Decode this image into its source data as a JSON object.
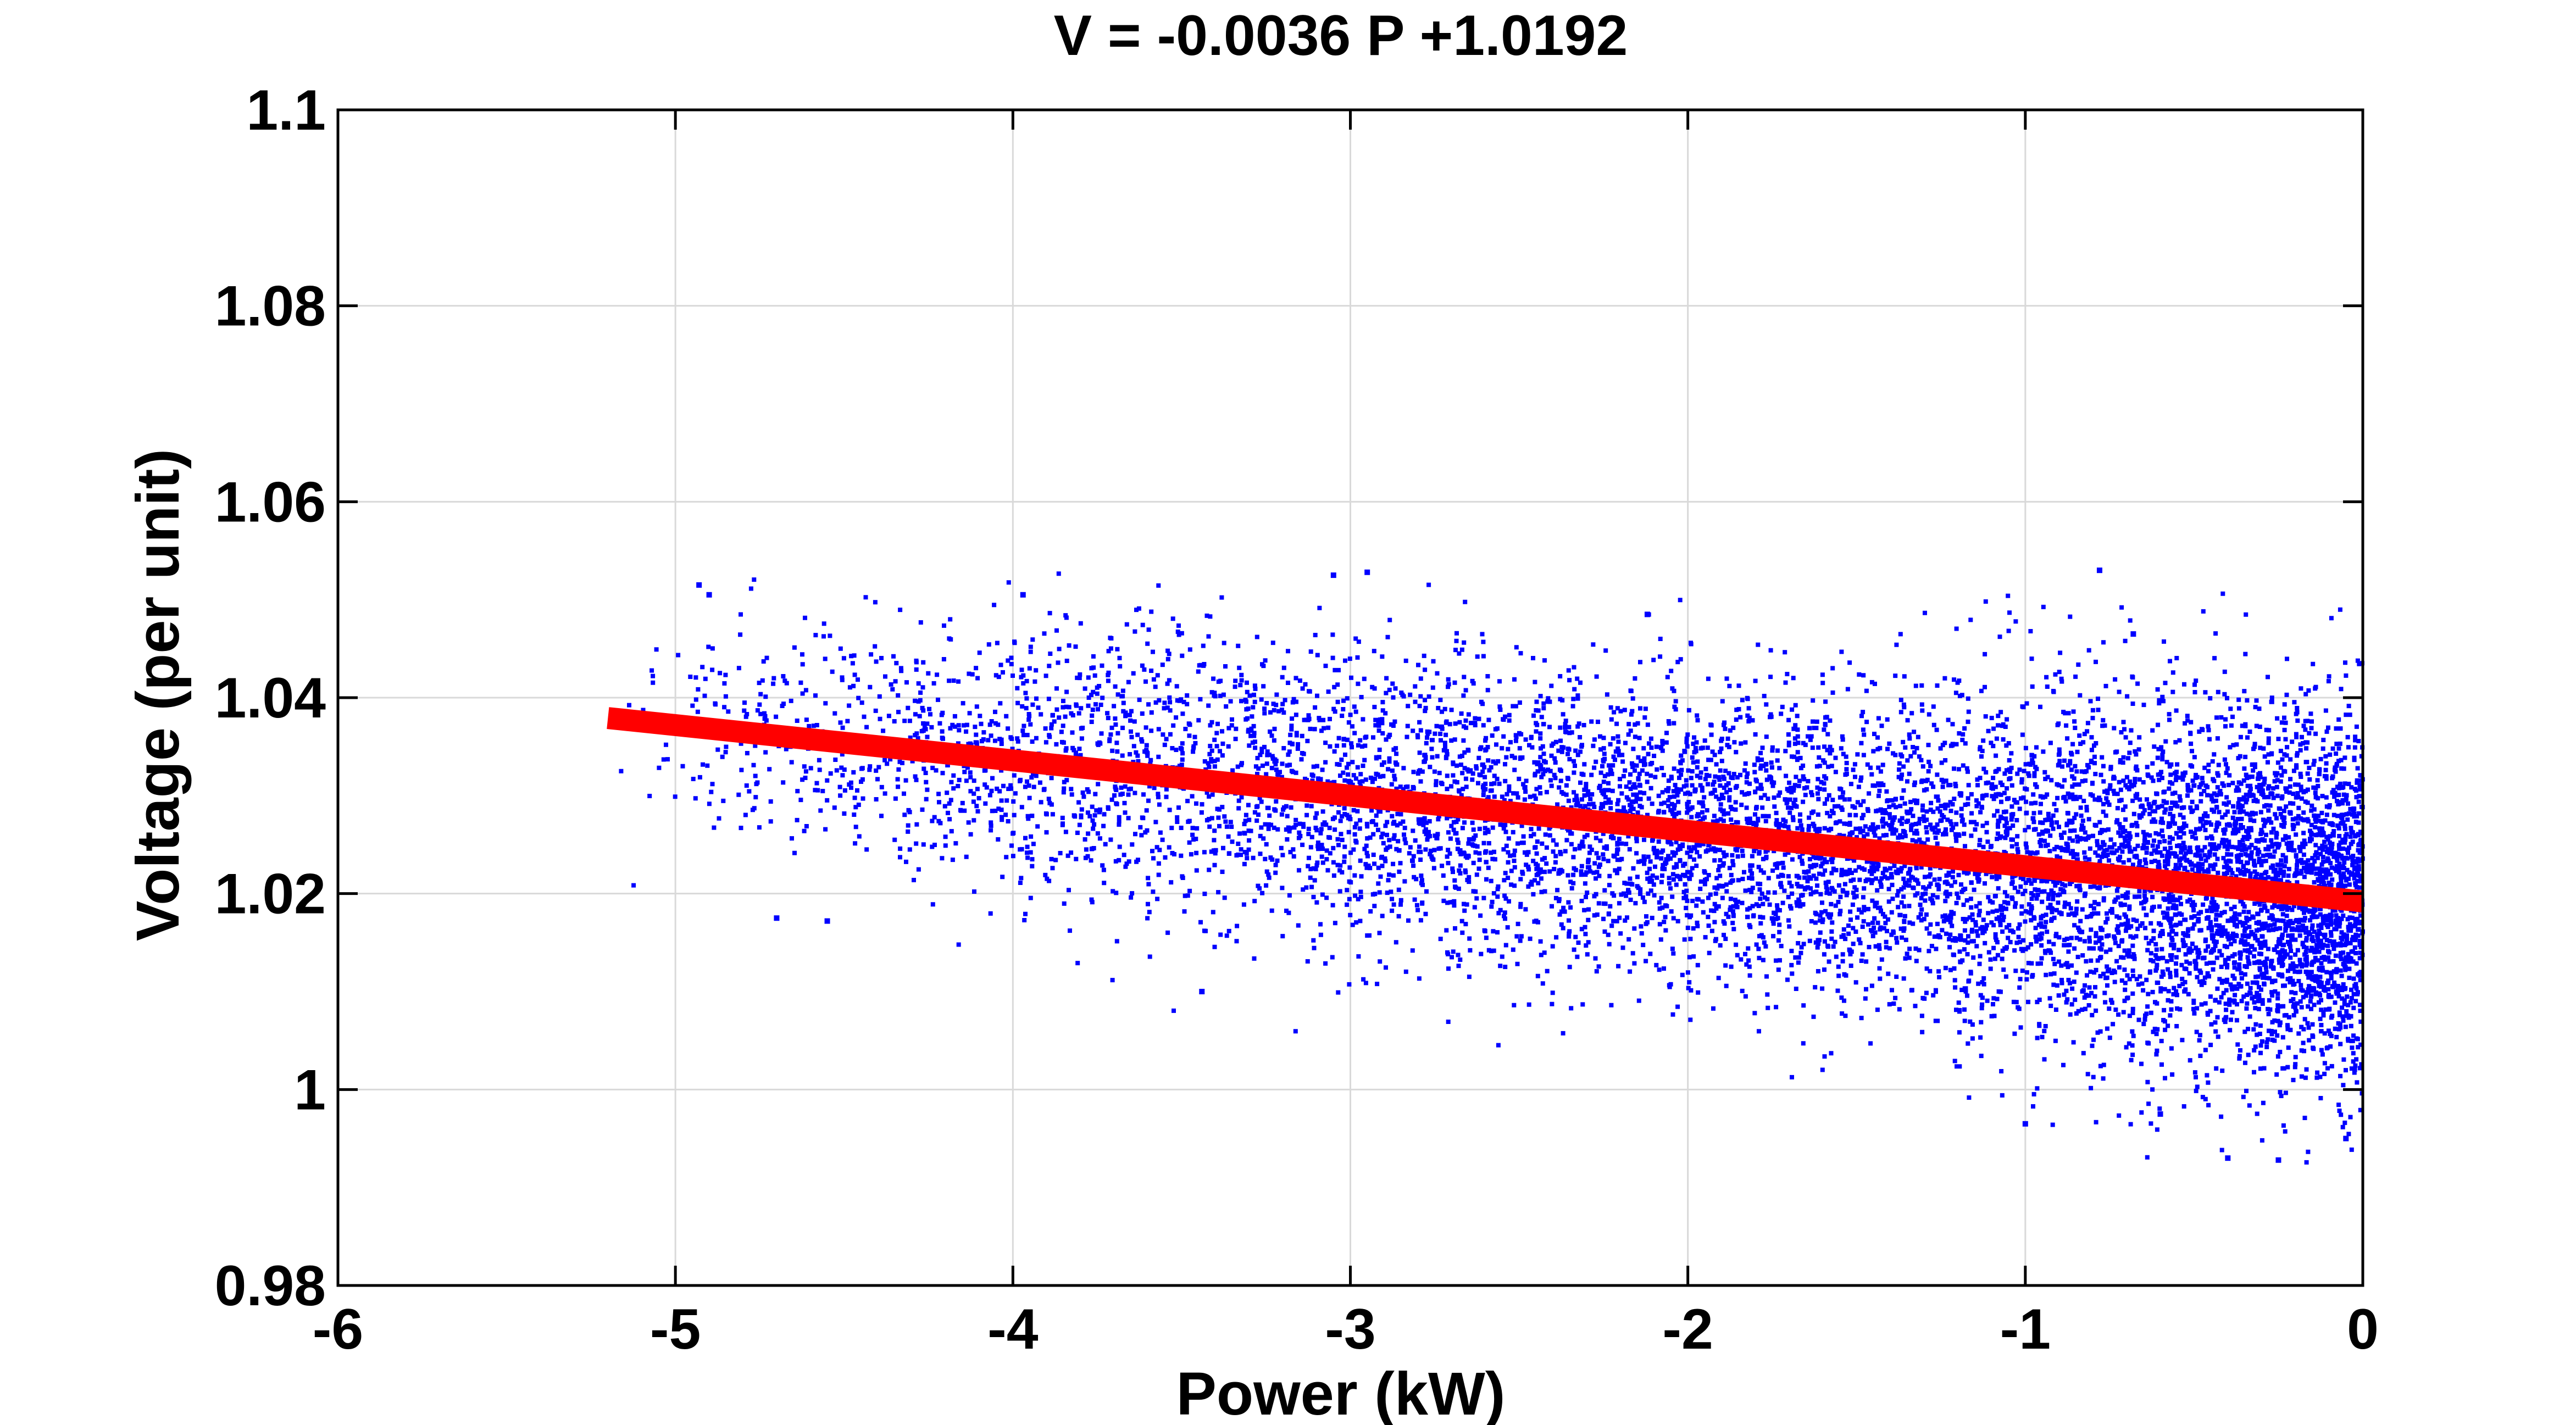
{
  "chart_data": {
    "type": "scatter",
    "title": "V = -0.0036 P +1.0192",
    "xlabel": "Power (kW)",
    "ylabel": "Voltage (per unit)",
    "xlim": [
      -6,
      0
    ],
    "ylim": [
      0.98,
      1.1
    ],
    "xticks": [
      -6,
      -5,
      -4,
      -3,
      -2,
      -1,
      0
    ],
    "yticks": [
      0.98,
      1.0,
      1.02,
      1.04,
      1.06,
      1.08,
      1.1
    ],
    "xtick_labels": [
      "-6",
      "-5",
      "-4",
      "-3",
      "-2",
      "-1",
      "0"
    ],
    "ytick_labels": [
      "0.98",
      "1",
      "1.02",
      "1.04",
      "1.06",
      "1.08",
      "1.1"
    ],
    "grid": true,
    "legend": "none",
    "colors": {
      "points": "#0000ff",
      "fit_line": "#ff0000",
      "grid": "#d9d9d9",
      "axes": "#000000"
    },
    "series": [
      {
        "kind": "scatter",
        "color": "#0000ff",
        "point_cloud": {
          "x_range": [
            -5.2,
            0
          ],
          "density_peak_x": -0.3,
          "spread": 0.0075,
          "follows_fit": true
        },
        "notable_points": [
          {
            "x": -4.93,
            "y": 1.0515
          },
          {
            "x": -4.9,
            "y": 1.0505
          },
          {
            "x": -3.97,
            "y": 1.0505
          },
          {
            "x": -3.05,
            "y": 1.0525
          },
          {
            "x": -2.95,
            "y": 1.0528
          },
          {
            "x": -2.12,
            "y": 1.0485
          },
          {
            "x": -0.78,
            "y": 1.053
          },
          {
            "x": -0.68,
            "y": 1.0465
          },
          {
            "x": -4.7,
            "y": 1.0175
          },
          {
            "x": -4.55,
            "y": 1.0172
          },
          {
            "x": -3.44,
            "y": 1.01
          },
          {
            "x": -1.0,
            "y": 0.9965
          },
          {
            "x": -0.6,
            "y": 0.9975
          },
          {
            "x": -0.4,
            "y": 0.993
          },
          {
            "x": -0.25,
            "y": 0.9928
          },
          {
            "x": -0.05,
            "y": 0.995
          }
        ]
      },
      {
        "kind": "line",
        "color": "#ff0000",
        "slope": -0.0036,
        "intercept": 1.0192,
        "x": [
          -5.2,
          0
        ],
        "y": [
          1.03792,
          1.0192
        ]
      }
    ]
  }
}
